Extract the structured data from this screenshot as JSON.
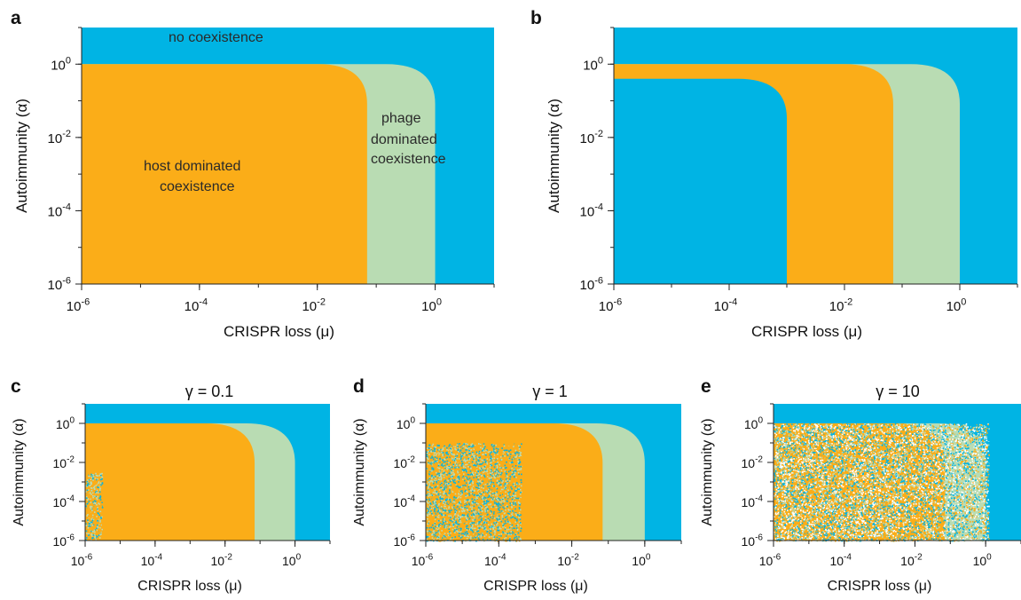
{
  "colors": {
    "no_coexistence": "#00b4e4",
    "host_dominated": "#fbad18",
    "phage_dominated": "#b9dcb3",
    "background": "#ffffff"
  },
  "chart_data": [
    {
      "panel": "a",
      "type": "heatmap",
      "title": "",
      "xlabel": "CRISPR loss (μ)",
      "ylabel": "Autoimmunity (α)",
      "xscale": "log",
      "yscale": "log",
      "xlim": [
        1e-06,
        10
      ],
      "ylim": [
        1e-06,
        10
      ],
      "xticks": [
        "10^-6",
        "10^-4",
        "10^-2",
        "10^0"
      ],
      "yticks": [
        "10^-6",
        "10^-4",
        "10^-2",
        "10^0"
      ],
      "regions": [
        {
          "name": "no coexistence",
          "alpha_max": 10,
          "mu_max": 10
        },
        {
          "name": "phage dominated coexistence",
          "alpha_max": 1,
          "mu_max": 1
        },
        {
          "name": "host dominated coexistence",
          "alpha_max": 1,
          "mu_max": 0.07
        }
      ],
      "annotations": [
        "no coexistence",
        "phage",
        "dominated",
        "coexistence",
        "host dominated",
        "coexistence"
      ]
    },
    {
      "panel": "b",
      "type": "heatmap",
      "title": "",
      "xlabel": "CRISPR loss (μ)",
      "ylabel": "Autoimmunity (α)",
      "xscale": "log",
      "yscale": "log",
      "xlim": [
        1e-06,
        10
      ],
      "ylim": [
        1e-06,
        10
      ],
      "xticks": [
        "10^-6",
        "10^-4",
        "10^-2",
        "10^0"
      ],
      "yticks": [
        "10^-6",
        "10^-4",
        "10^-2",
        "10^0"
      ],
      "regions": [
        {
          "name": "no coexistence",
          "alpha_max": 10,
          "mu_max": 10
        },
        {
          "name": "phage dominated coexistence",
          "alpha_max": 1,
          "mu_max": 1
        },
        {
          "name": "host dominated coexistence",
          "alpha_max": 1,
          "mu_max": 0.07
        },
        {
          "name": "no coexistence",
          "alpha_max": 0.4,
          "mu_max": 0.001
        }
      ]
    },
    {
      "panel": "c",
      "type": "heatmap",
      "title": "γ = 0.1",
      "xlabel": "CRISPR loss (μ)",
      "ylabel": "Autoimmunity (α)",
      "xscale": "log",
      "yscale": "log",
      "xlim": [
        1e-06,
        10
      ],
      "ylim": [
        1e-06,
        10
      ],
      "xticks": [
        "10^-6",
        "10^-4",
        "10^-2",
        "10^0"
      ],
      "yticks": [
        "10^-6",
        "10^-4",
        "10^-2",
        "10^0"
      ],
      "regions": [
        {
          "name": "no coexistence",
          "alpha_max": 10,
          "mu_max": 10
        },
        {
          "name": "phage dominated coexistence",
          "alpha_max": 1,
          "mu_max": 1
        },
        {
          "name": "host dominated coexistence",
          "alpha_max": 1,
          "mu_max": 0.07
        }
      ],
      "noise": {
        "mu_range": [
          1e-06,
          3e-06
        ],
        "alpha_range": [
          1e-06,
          0.003
        ],
        "density": 0.5
      }
    },
    {
      "panel": "d",
      "type": "heatmap",
      "title": "γ = 1",
      "xlabel": "CRISPR loss (μ)",
      "ylabel": "Autoimmunity (α)",
      "xscale": "log",
      "yscale": "log",
      "xlim": [
        1e-06,
        10
      ],
      "ylim": [
        1e-06,
        10
      ],
      "xticks": [
        "10^-6",
        "10^-4",
        "10^-2",
        "10^0"
      ],
      "yticks": [
        "10^-6",
        "10^-4",
        "10^-2",
        "10^0"
      ],
      "regions": [
        {
          "name": "no coexistence",
          "alpha_max": 10,
          "mu_max": 10
        },
        {
          "name": "phage dominated coexistence",
          "alpha_max": 1,
          "mu_max": 1
        },
        {
          "name": "host dominated coexistence",
          "alpha_max": 1,
          "mu_max": 0.07
        }
      ],
      "noise": {
        "mu_range": [
          1e-06,
          0.0004
        ],
        "alpha_range": [
          1e-06,
          0.1
        ],
        "density": 0.55
      }
    },
    {
      "panel": "e",
      "type": "heatmap",
      "title": "γ = 10",
      "xlabel": "CRISPR loss (μ)",
      "ylabel": "Autoimmunity (α)",
      "xscale": "log",
      "yscale": "log",
      "xlim": [
        1e-06,
        10
      ],
      "ylim": [
        1e-06,
        10
      ],
      "xticks": [
        "10^-6",
        "10^-4",
        "10^-2",
        "10^0"
      ],
      "yticks": [
        "10^-6",
        "10^-4",
        "10^-2",
        "10^0"
      ],
      "regions": [
        {
          "name": "no coexistence",
          "alpha_max": 10,
          "mu_max": 10
        },
        {
          "name": "phage dominated coexistence",
          "alpha_max": 1,
          "mu_max": 1
        },
        {
          "name": "host dominated coexistence",
          "alpha_max": 1,
          "mu_max": 0.07
        }
      ],
      "noise": {
        "mu_range": [
          1e-06,
          1.2
        ],
        "alpha_range": [
          1e-06,
          1
        ],
        "density": 0.7
      }
    }
  ],
  "panels": {
    "a": {
      "letter": "a",
      "text_no": "no coexistence",
      "text_phage1": "phage",
      "text_phage2": "dominated",
      "text_phage3": "coexistence",
      "text_host1": "host dominated",
      "text_host2": "coexistence"
    },
    "b": {
      "letter": "b"
    },
    "c": {
      "letter": "c",
      "title": "γ = 0.1"
    },
    "d": {
      "letter": "d",
      "title": "γ = 1"
    },
    "e": {
      "letter": "e",
      "title": "γ = 10"
    }
  },
  "labels": {
    "xlabel": "CRISPR loss (μ)",
    "ylabel": "Autoimmunity (α)",
    "tick_base": "10",
    "ticks": [
      "-6",
      "-4",
      "-2",
      "0"
    ]
  }
}
